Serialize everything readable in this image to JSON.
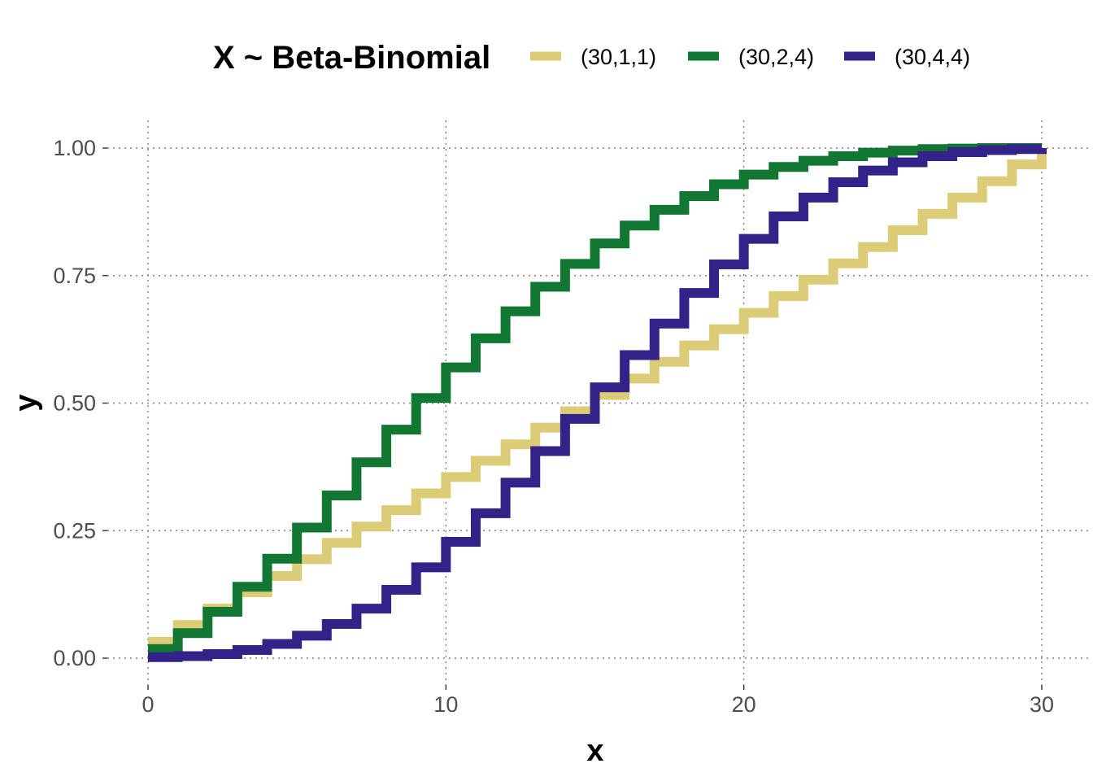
{
  "chart_data": {
    "type": "line",
    "step": true,
    "legend_title": "X ~ Beta-Binomial",
    "legend_position": "top",
    "xlabel": "x",
    "ylabel": "y",
    "xlim": [
      0,
      30
    ],
    "ylim": [
      0,
      1
    ],
    "x_ticks": [
      0,
      10,
      20,
      30
    ],
    "x_tick_labels": [
      "0",
      "10",
      "20",
      "30"
    ],
    "y_ticks": [
      0,
      0.25,
      0.5,
      0.75,
      1
    ],
    "y_tick_labels": [
      "0.00",
      "0.25",
      "0.50",
      "0.75",
      "1.00"
    ],
    "grid": true,
    "x": [
      0,
      1,
      2,
      3,
      4,
      5,
      6,
      7,
      8,
      9,
      10,
      11,
      12,
      13,
      14,
      15,
      16,
      17,
      18,
      19,
      20,
      21,
      22,
      23,
      24,
      25,
      26,
      27,
      28,
      29,
      30
    ],
    "series": [
      {
        "name": "(30,1,1)",
        "color": "#ddcc77",
        "values": [
          0.032,
          0.065,
          0.097,
          0.129,
          0.161,
          0.194,
          0.226,
          0.258,
          0.29,
          0.323,
          0.355,
          0.387,
          0.419,
          0.452,
          0.484,
          0.516,
          0.548,
          0.581,
          0.613,
          0.645,
          0.677,
          0.71,
          0.742,
          0.774,
          0.806,
          0.839,
          0.871,
          0.903,
          0.935,
          0.968,
          1.0
        ]
      },
      {
        "name": "(30,2,4)",
        "color": "#117733",
        "values": [
          0.018,
          0.049,
          0.091,
          0.14,
          0.195,
          0.256,
          0.319,
          0.384,
          0.448,
          0.51,
          0.57,
          0.627,
          0.68,
          0.728,
          0.773,
          0.813,
          0.848,
          0.879,
          0.906,
          0.929,
          0.948,
          0.963,
          0.975,
          0.984,
          0.991,
          0.995,
          0.998,
          0.999,
          1.0,
          1.0,
          1.0
        ]
      },
      {
        "name": "(30,4,4)",
        "color": "#332288",
        "values": [
          0.002,
          0.004,
          0.008,
          0.016,
          0.028,
          0.044,
          0.067,
          0.097,
          0.134,
          0.178,
          0.228,
          0.284,
          0.344,
          0.406,
          0.469,
          0.531,
          0.594,
          0.656,
          0.716,
          0.772,
          0.822,
          0.866,
          0.903,
          0.933,
          0.956,
          0.972,
          0.984,
          0.992,
          0.996,
          0.998,
          1.0
        ]
      }
    ]
  }
}
